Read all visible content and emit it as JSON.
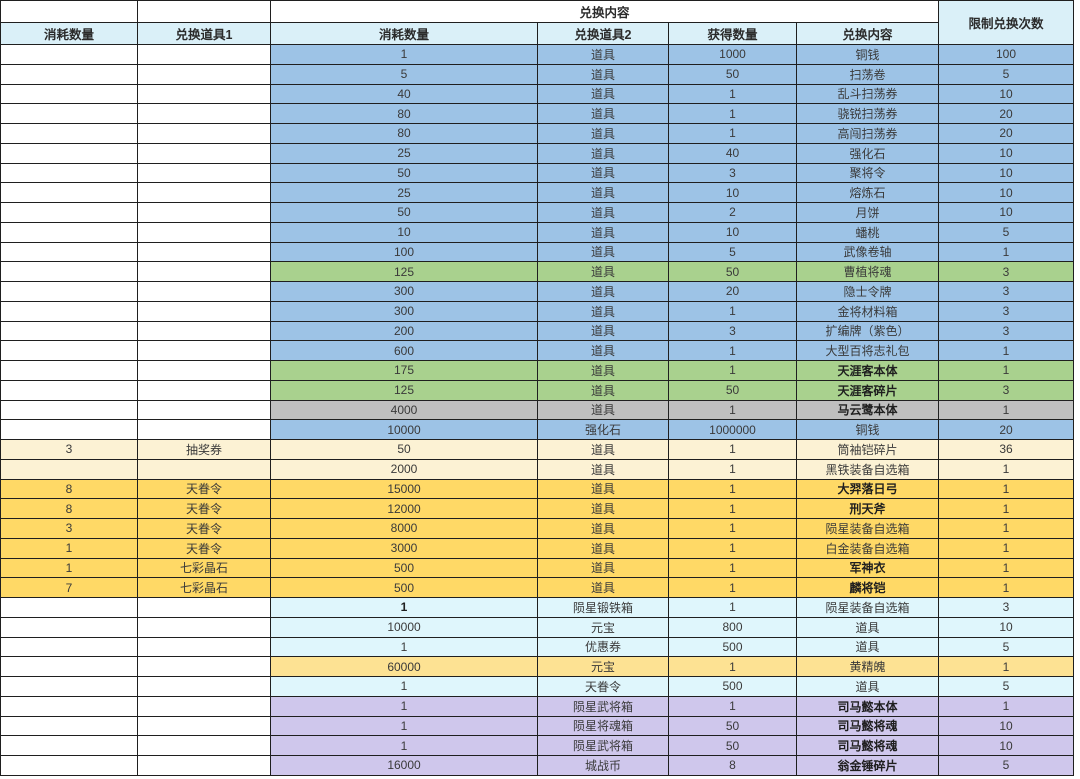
{
  "table": {
    "top_header": "兑换内容",
    "limit_header": "限制兑换次数",
    "columns": [
      "消耗数量",
      "兑换道具1",
      "消耗数量",
      "兑换道具2",
      "获得数量",
      "兑换内容"
    ],
    "rows": [
      {
        "cells": [
          "",
          "",
          "1",
          "道具",
          "1000",
          "铜钱",
          "100"
        ],
        "theme": "blue",
        "left": "white",
        "bold": []
      },
      {
        "cells": [
          "",
          "",
          "5",
          "道具",
          "50",
          "扫荡卷",
          "5"
        ],
        "theme": "blue",
        "left": "white",
        "bold": []
      },
      {
        "cells": [
          "",
          "",
          "40",
          "道具",
          "1",
          "乱斗扫荡券",
          "10"
        ],
        "theme": "blue",
        "left": "white",
        "bold": []
      },
      {
        "cells": [
          "",
          "",
          "80",
          "道具",
          "1",
          "骁锐扫荡券",
          "20"
        ],
        "theme": "blue",
        "left": "white",
        "bold": []
      },
      {
        "cells": [
          "",
          "",
          "80",
          "道具",
          "1",
          "高闯扫荡券",
          "20"
        ],
        "theme": "blue",
        "left": "white",
        "bold": []
      },
      {
        "cells": [
          "",
          "",
          "25",
          "道具",
          "40",
          "强化石",
          "10"
        ],
        "theme": "blue",
        "left": "white",
        "bold": []
      },
      {
        "cells": [
          "",
          "",
          "50",
          "道具",
          "3",
          "聚将令",
          "10"
        ],
        "theme": "blue",
        "left": "white",
        "bold": []
      },
      {
        "cells": [
          "",
          "",
          "25",
          "道具",
          "10",
          "熔炼石",
          "10"
        ],
        "theme": "blue",
        "left": "white",
        "bold": []
      },
      {
        "cells": [
          "",
          "",
          "50",
          "道具",
          "2",
          "月饼",
          "10"
        ],
        "theme": "blue",
        "left": "white",
        "bold": []
      },
      {
        "cells": [
          "",
          "",
          "10",
          "道具",
          "10",
          "蟠桃",
          "5"
        ],
        "theme": "blue",
        "left": "white",
        "bold": []
      },
      {
        "cells": [
          "",
          "",
          "100",
          "道具",
          "5",
          "武像卷轴",
          "1"
        ],
        "theme": "blue",
        "left": "white",
        "bold": []
      },
      {
        "cells": [
          "",
          "",
          "125",
          "道具",
          "50",
          "曹植将魂",
          "3"
        ],
        "theme": "green",
        "left": "white",
        "bold": []
      },
      {
        "cells": [
          "",
          "",
          "300",
          "道具",
          "20",
          "隐士令牌",
          "3"
        ],
        "theme": "blue",
        "left": "white",
        "bold": []
      },
      {
        "cells": [
          "",
          "",
          "300",
          "道具",
          "1",
          "金将材料箱",
          "3"
        ],
        "theme": "blue",
        "left": "white",
        "bold": []
      },
      {
        "cells": [
          "",
          "",
          "200",
          "道具",
          "3",
          "扩编牌（紫色）",
          "3"
        ],
        "theme": "blue",
        "left": "white",
        "bold": []
      },
      {
        "cells": [
          "",
          "",
          "600",
          "道具",
          "1",
          "大型百将志礼包",
          "1"
        ],
        "theme": "blue",
        "left": "white",
        "bold": []
      },
      {
        "cells": [
          "",
          "",
          "175",
          "道具",
          "1",
          "天涯客本体",
          "1"
        ],
        "theme": "green",
        "left": "white",
        "bold": [
          5
        ]
      },
      {
        "cells": [
          "",
          "",
          "125",
          "道具",
          "50",
          "天涯客碎片",
          "3"
        ],
        "theme": "green",
        "left": "white",
        "bold": [
          5
        ]
      },
      {
        "cells": [
          "",
          "",
          "4000",
          "道具",
          "1",
          "马云鹭本体",
          "1"
        ],
        "theme": "gray",
        "left": "white",
        "bold": [
          5
        ]
      },
      {
        "cells": [
          "",
          "",
          "10000",
          "强化石",
          "1000000",
          "铜钱",
          "20"
        ],
        "theme": "blue",
        "left": "white",
        "bold": []
      },
      {
        "cells": [
          "3",
          "抽奖券",
          "50",
          "道具",
          "1",
          "筒袖铠碎片",
          "36"
        ],
        "theme": "cream",
        "left": "cream",
        "bold": []
      },
      {
        "cells": [
          "",
          "",
          "2000",
          "道具",
          "1",
          "黑铁装备自选箱",
          "1"
        ],
        "theme": "cream",
        "left": "cream",
        "bold": []
      },
      {
        "cells": [
          "8",
          "天眷令",
          "15000",
          "道具",
          "1",
          "大羿落日弓",
          "1"
        ],
        "theme": "gold",
        "left": "gold",
        "bold": [
          5
        ]
      },
      {
        "cells": [
          "8",
          "天眷令",
          "12000",
          "道具",
          "1",
          "刑天斧",
          "1"
        ],
        "theme": "gold",
        "left": "gold",
        "bold": [
          5
        ]
      },
      {
        "cells": [
          "3",
          "天眷令",
          "8000",
          "道具",
          "1",
          "陨星装备自选箱",
          "1"
        ],
        "theme": "gold",
        "left": "gold",
        "bold": []
      },
      {
        "cells": [
          "1",
          "天眷令",
          "3000",
          "道具",
          "1",
          "白金装备自选箱",
          "1"
        ],
        "theme": "gold",
        "left": "gold",
        "bold": []
      },
      {
        "cells": [
          "1",
          "七彩晶石",
          "500",
          "道具",
          "1",
          "军神衣",
          "1"
        ],
        "theme": "gold",
        "left": "gold",
        "bold": [
          5
        ]
      },
      {
        "cells": [
          "7",
          "七彩晶石",
          "500",
          "道具",
          "1",
          "麟将铠",
          "1"
        ],
        "theme": "gold",
        "left": "gold",
        "bold": [
          5
        ]
      },
      {
        "cells": [
          "",
          "",
          "1",
          "陨星锻铁箱",
          "1",
          "陨星装备自选箱",
          "3"
        ],
        "theme": "cyan",
        "left": "white",
        "bold": [
          2
        ]
      },
      {
        "cells": [
          "",
          "",
          "10000",
          "元宝",
          "800",
          "道具",
          "10"
        ],
        "theme": "cyan",
        "left": "white",
        "bold": []
      },
      {
        "cells": [
          "",
          "",
          "1",
          "优惠券",
          "500",
          "道具",
          "5"
        ],
        "theme": "cyan",
        "left": "white",
        "bold": []
      },
      {
        "cells": [
          "",
          "",
          "60000",
          "元宝",
          "1",
          "黄精魄",
          "1"
        ],
        "theme": "yellow",
        "left": "white",
        "bold": []
      },
      {
        "cells": [
          "",
          "",
          "1",
          "天眷令",
          "500",
          "道具",
          "5"
        ],
        "theme": "cyan",
        "left": "white",
        "bold": []
      },
      {
        "cells": [
          "",
          "",
          "1",
          "陨星武将箱",
          "1",
          "司马懿本体",
          "1"
        ],
        "theme": "purple",
        "left": "white",
        "bold": [
          5
        ]
      },
      {
        "cells": [
          "",
          "",
          "1",
          "陨星将魂箱",
          "50",
          "司马懿将魂",
          "10"
        ],
        "theme": "purple",
        "left": "white",
        "bold": [
          5
        ]
      },
      {
        "cells": [
          "",
          "",
          "1",
          "陨星武将箱",
          "50",
          "司马懿将魂",
          "10"
        ],
        "theme": "purple",
        "left": "white",
        "bold": [
          5
        ]
      },
      {
        "cells": [
          "",
          "",
          "16000",
          "城战币",
          "8",
          "翁金锤碎片",
          "5"
        ],
        "theme": "purple",
        "left": "white",
        "bold": [
          5
        ]
      }
    ]
  },
  "colors": {
    "white": "#ffffff",
    "blue": "#9DC3E6",
    "green": "#A9D18E",
    "gray": "#BFBFBF",
    "cream": "#FCF2D4",
    "gold": "#FFD966",
    "cyan": "#DFF6FC",
    "yellow": "#FDE293",
    "purple": "#CFC7EC",
    "header_bg": "#DAF0F8",
    "border": "#1f1f1f"
  }
}
